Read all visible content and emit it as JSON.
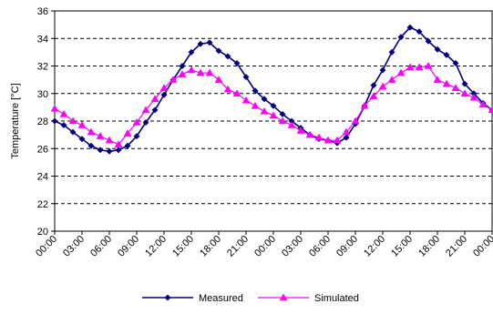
{
  "chart_data": {
    "type": "line",
    "ylabel": "Temperature [°C]",
    "xlabel": "",
    "ylim": [
      20,
      36
    ],
    "yticks": [
      20,
      22,
      24,
      26,
      28,
      30,
      32,
      34,
      36
    ],
    "x_tick_labels": [
      "00:00",
      "03:00",
      "06:00",
      "09:00",
      "12:00",
      "15:00",
      "18:00",
      "21:00",
      "00:00",
      "03:00",
      "06:00",
      "09:00",
      "12:00",
      "15:00",
      "18:00",
      "21:00",
      "00:00"
    ],
    "x_hours_per_tick": 3,
    "grid": "horizontal-dashed",
    "legend": "bottom",
    "series": [
      {
        "name": "Measured",
        "color": "#000080",
        "marker": "diamond",
        "x": [
          0,
          1,
          2,
          3,
          4,
          5,
          6,
          7,
          8,
          9,
          10,
          11,
          12,
          13,
          14,
          15,
          16,
          17,
          18,
          19,
          20,
          21,
          22,
          23,
          24,
          25,
          26,
          27,
          28,
          29,
          30,
          31,
          32,
          33,
          34,
          35,
          36,
          37,
          38,
          39,
          40,
          41,
          42,
          43,
          44,
          45,
          46,
          47,
          48
        ],
        "values": [
          28.0,
          27.7,
          27.2,
          26.7,
          26.2,
          25.9,
          25.8,
          25.9,
          26.2,
          26.9,
          27.9,
          28.8,
          29.9,
          31.0,
          32.0,
          33.0,
          33.6,
          33.7,
          33.1,
          32.7,
          32.2,
          31.2,
          30.2,
          29.6,
          29.1,
          28.5,
          28.0,
          27.5,
          27.0,
          26.7,
          26.6,
          26.4,
          26.8,
          27.8,
          29.1,
          30.6,
          31.7,
          33.0,
          34.1,
          34.8,
          34.5,
          33.8,
          33.2,
          32.8,
          32.2,
          30.7,
          30.0,
          29.3,
          28.8
        ]
      },
      {
        "name": "Simulated",
        "color": "#FF00FF",
        "marker": "triangle",
        "x": [
          0,
          1,
          2,
          3,
          4,
          5,
          6,
          7,
          8,
          9,
          10,
          11,
          12,
          13,
          14,
          15,
          16,
          17,
          18,
          19,
          20,
          21,
          22,
          23,
          24,
          25,
          26,
          27,
          28,
          29,
          30,
          31,
          32,
          33,
          34,
          35,
          36,
          37,
          38,
          39,
          40,
          41,
          42,
          43,
          44,
          45,
          46,
          47,
          48
        ],
        "values": [
          28.9,
          28.5,
          28.0,
          27.7,
          27.2,
          26.9,
          26.6,
          26.3,
          27.1,
          27.9,
          28.8,
          29.6,
          30.4,
          31.0,
          31.4,
          31.7,
          31.5,
          31.5,
          31.0,
          30.3,
          30.0,
          29.5,
          29.1,
          28.7,
          28.4,
          28.0,
          27.7,
          27.3,
          27.0,
          26.8,
          26.6,
          26.6,
          27.2,
          28.0,
          29.1,
          29.8,
          30.5,
          31.0,
          31.5,
          31.9,
          31.9,
          32.0,
          31.0,
          30.7,
          30.4,
          30.0,
          29.7,
          29.2,
          28.8
        ]
      }
    ]
  }
}
